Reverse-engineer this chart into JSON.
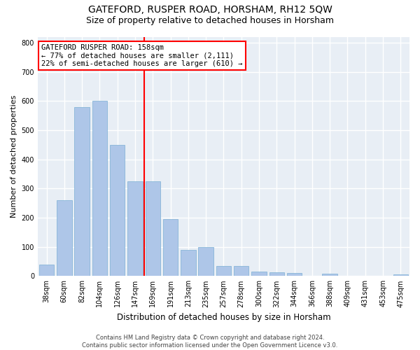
{
  "title": "GATEFORD, RUSPER ROAD, HORSHAM, RH12 5QW",
  "subtitle": "Size of property relative to detached houses in Horsham",
  "xlabel": "Distribution of detached houses by size in Horsham",
  "ylabel": "Number of detached properties",
  "footer_line1": "Contains HM Land Registry data © Crown copyright and database right 2024.",
  "footer_line2": "Contains public sector information licensed under the Open Government Licence v3.0.",
  "categories": [
    "38sqm",
    "60sqm",
    "82sqm",
    "104sqm",
    "126sqm",
    "147sqm",
    "169sqm",
    "191sqm",
    "213sqm",
    "235sqm",
    "257sqm",
    "278sqm",
    "300sqm",
    "322sqm",
    "344sqm",
    "366sqm",
    "388sqm",
    "409sqm",
    "431sqm",
    "453sqm",
    "475sqm"
  ],
  "values": [
    38,
    260,
    580,
    600,
    450,
    325,
    325,
    195,
    90,
    100,
    35,
    35,
    15,
    12,
    10,
    0,
    8,
    0,
    0,
    0,
    5
  ],
  "bar_color": "#aec6e8",
  "bar_edge_color": "#7aafd4",
  "vline_x_index": 5.5,
  "annotation_text": "GATEFORD RUSPER ROAD: 158sqm\n← 77% of detached houses are smaller (2,111)\n22% of semi-detached houses are larger (610) →",
  "annotation_box_facecolor": "white",
  "annotation_box_edgecolor": "red",
  "vline_color": "red",
  "ylim": [
    0,
    820
  ],
  "yticks": [
    0,
    100,
    200,
    300,
    400,
    500,
    600,
    700,
    800
  ],
  "bg_color": "#ffffff",
  "plot_bg_color": "#e8eef5",
  "grid_color": "#ffffff",
  "title_fontsize": 10,
  "subtitle_fontsize": 9,
  "annotation_fontsize": 7.5,
  "tick_fontsize": 7,
  "ylabel_fontsize": 8,
  "xlabel_fontsize": 8.5,
  "footer_fontsize": 6
}
